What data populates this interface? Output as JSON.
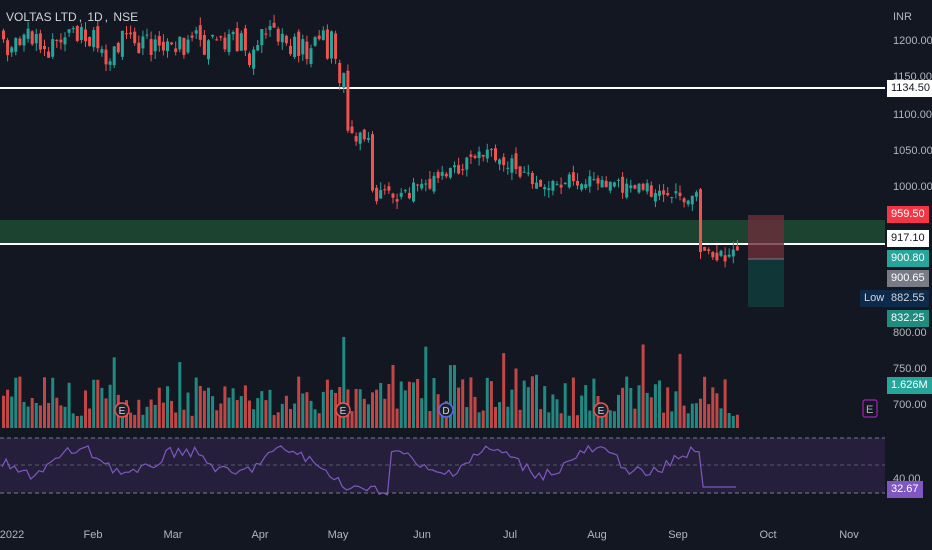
{
  "header": {
    "symbol": "VOLTAS LTD",
    "interval": "1D",
    "exchange": "NSE",
    "currency": "INR"
  },
  "price_axis": {
    "ticks": [
      "1200.00",
      "1150.00",
      "1100.00",
      "1050.00",
      "1000.00",
      "800.00",
      "750.00",
      "700.00"
    ],
    "tags": [
      {
        "name": "resistance-line-price-tag",
        "label": "1134.50",
        "bg": "#ffffff",
        "fg": "#131722"
      },
      {
        "name": "stop-price-tag",
        "label": "959.50",
        "bg": "#f23645",
        "fg": "#ffffff"
      },
      {
        "name": "support-line-price-tag",
        "label": "917.10",
        "bg": "#ffffff",
        "fg": "#131722"
      },
      {
        "name": "last-price-tag",
        "label": "900.80",
        "bg": "#26a69a",
        "fg": "#ffffff"
      },
      {
        "name": "entry-price-tag",
        "label": "900.65",
        "bg": "#787b86",
        "fg": "#ffffff"
      },
      {
        "name": "low-price-tag",
        "label": "882.55",
        "bg": "#0d2a4a",
        "fg": "#d1d4dc"
      },
      {
        "name": "target-price-tag",
        "label": "832.25",
        "bg": "#1e8c7e",
        "fg": "#ffffff"
      },
      {
        "name": "volume-tag",
        "label": "1.626M",
        "bg": "#26a69a",
        "fg": "#ffffff"
      },
      {
        "name": "rsi-value-tag",
        "label": "32.67",
        "bg": "#7e57c2",
        "fg": "#ffffff"
      }
    ],
    "low_label": "Low",
    "rsi_tick": "40.00",
    "event_marker": "E"
  },
  "time_axis": [
    "2022",
    "Feb",
    "Mar",
    "Apr",
    "May",
    "Jun",
    "Jul",
    "Aug",
    "Sep",
    "Oct",
    "Nov"
  ],
  "events": [
    "E",
    "E",
    "D",
    "E"
  ],
  "colors": {
    "up": "#26a69a",
    "down": "#ef5350",
    "rsi": "#7e57c2",
    "bg": "#131722",
    "zone": "#1e4a32"
  }
}
